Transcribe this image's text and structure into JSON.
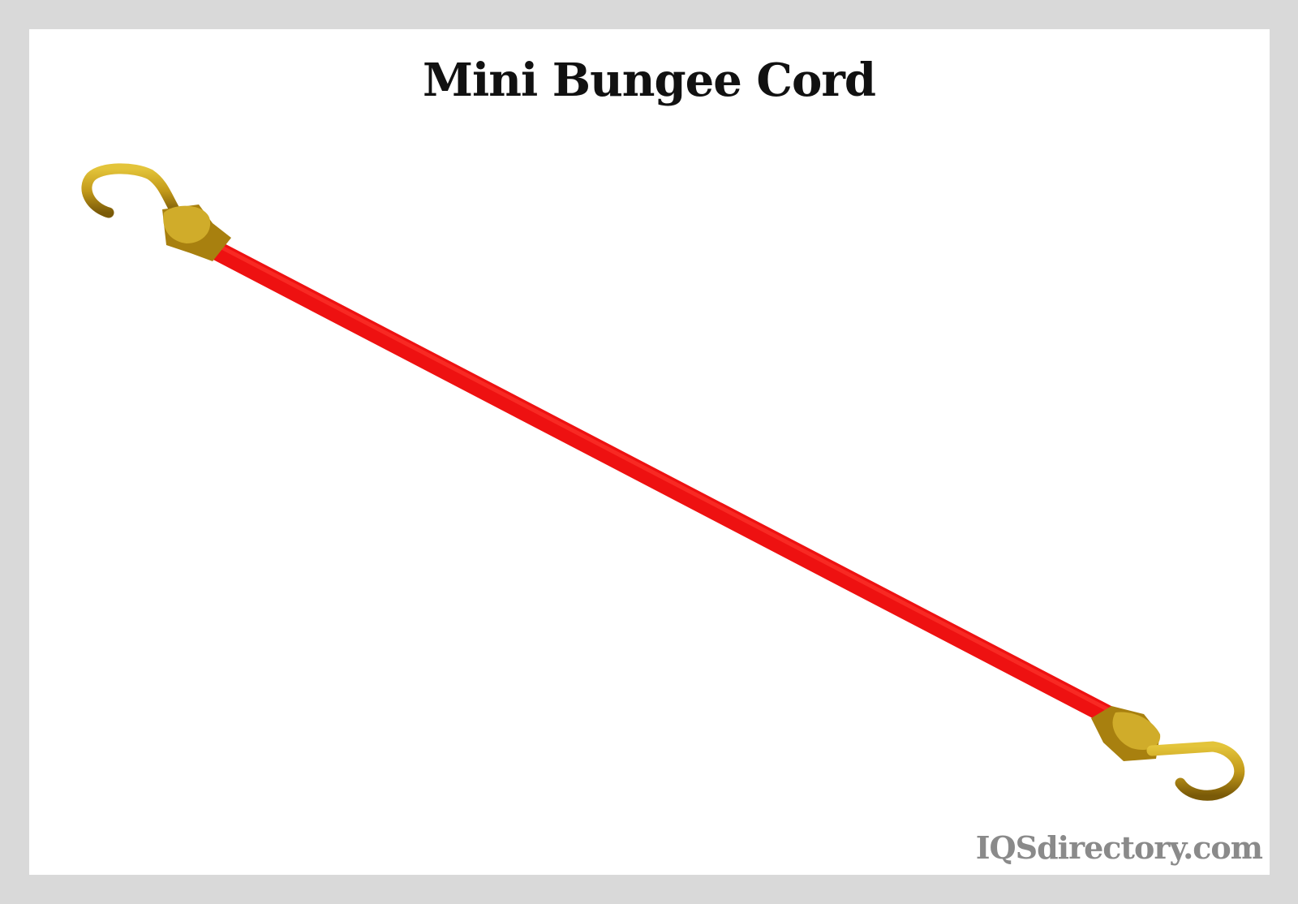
{
  "title": "Mini Bungee Cord",
  "watermark": "IQSdirectory.com",
  "colors": {
    "cord": "#ee1111",
    "hook": "#c9a21c",
    "frame": "#d9d9d9",
    "watermark": "#8a8a8a"
  },
  "components": [
    "cord",
    "hook-left",
    "hook-right"
  ]
}
